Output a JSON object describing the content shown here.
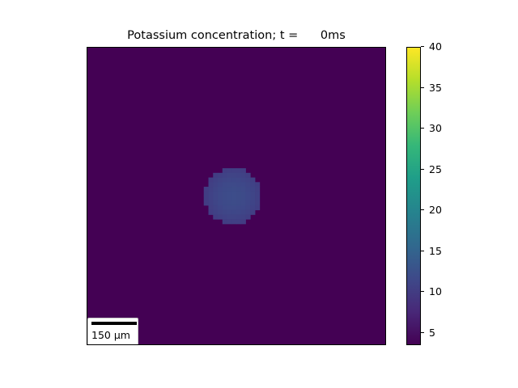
{
  "chart_data": {
    "type": "heatmap",
    "title": "Potassium concentration; t =      0ms",
    "title_prefix": "Potassium concentration; t = ",
    "time_value": "     0ms",
    "colormap": "viridis",
    "colorbar": {
      "min": 3.5,
      "max": 40,
      "ticks": [
        5,
        10,
        15,
        20,
        25,
        30,
        35,
        40
      ],
      "tick_labels": [
        "5",
        "10",
        "15",
        "20",
        "25",
        "30",
        "35",
        "40"
      ]
    },
    "field": {
      "background_value": 3.5,
      "blob_peak_value": 12,
      "blob_edge_value": 10,
      "blob_center": [
        0.49,
        0.5
      ],
      "blob_radius": 0.095
    },
    "scale_bar": {
      "label": "150 µm",
      "length": 150,
      "unit": "µm"
    },
    "grid": false,
    "legend": "colorbar-right"
  }
}
